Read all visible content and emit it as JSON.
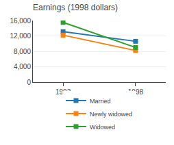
{
  "chart_data": {
    "type": "line",
    "title": "Earnings (1998 dollars)",
    "x": [
      1992,
      1998
    ],
    "series": [
      {
        "name": "Married",
        "values": [
          13100,
          10600
        ]
      },
      {
        "name": "Newly widowed",
        "values": [
          12200,
          8200
        ]
      },
      {
        "name": "Widowed",
        "values": [
          15500,
          9000
        ]
      }
    ],
    "xlim": [
      1989.5,
      2000.5
    ],
    "xticks": [
      1992,
      1998
    ],
    "ylim": [
      0,
      16000
    ],
    "yticks": [
      0,
      {
        "value": 4000,
        "label": "4,000"
      },
      {
        "value": 8000,
        "label": "8,000"
      },
      {
        "value": 12000,
        "label": "12,000"
      },
      {
        "value": 16000,
        "label": "16,000"
      }
    ],
    "grid": true,
    "legend": "bottom",
    "marker": "square"
  }
}
